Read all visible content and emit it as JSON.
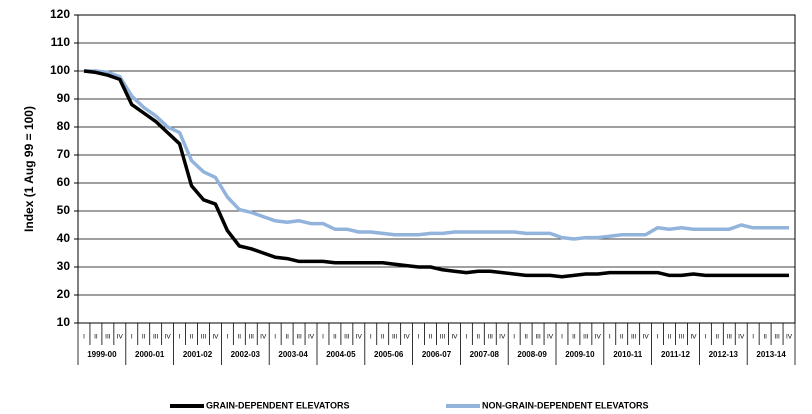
{
  "chart_data": {
    "type": "line",
    "y_label": "Index (1 Aug 99 = 100)",
    "categories": [
      "I",
      "II",
      "III",
      "IV",
      "I",
      "II",
      "III",
      "IV",
      "I",
      "II",
      "III",
      "IV",
      "I",
      "II",
      "III",
      "IV",
      "I",
      "II",
      "III",
      "IV",
      "I",
      "II",
      "III",
      "IV",
      "I",
      "II",
      "III",
      "IV",
      "I",
      "II",
      "III",
      "IV",
      "I",
      "II",
      "III",
      "IV",
      "I",
      "II",
      "III",
      "IV",
      "I",
      "II",
      "III",
      "IV",
      "I",
      "II",
      "III",
      "IV",
      "I",
      "II",
      "III",
      "IV",
      "I",
      "II",
      "III",
      "IV",
      "I",
      "II",
      "III",
      "IV"
    ],
    "groups": [
      "1999-00",
      "2000-01",
      "2001-02",
      "2002-03",
      "2003-04",
      "2004-05",
      "2005-06",
      "2006-07",
      "2007-08",
      "2008-09",
      "2009-10",
      "2010-11",
      "2011-12",
      "2012-13",
      "2013-14"
    ],
    "series": [
      {
        "name": "GRAIN-DEPENDENT ELEVATORS",
        "color": "#000000",
        "values": [
          100,
          99.5,
          98.5,
          97,
          88,
          85,
          82,
          78,
          74,
          59,
          54,
          52.5,
          43,
          37.5,
          36.5,
          35,
          33.5,
          33,
          32,
          32,
          32,
          31.5,
          31.5,
          31.5,
          31.5,
          31.5,
          31,
          30.5,
          30,
          30,
          29,
          28.5,
          28,
          28.5,
          28.5,
          28,
          27.5,
          27,
          27,
          27,
          26.5,
          27,
          27.5,
          27.5,
          28,
          28,
          28,
          28,
          28,
          27,
          27,
          27.5,
          27,
          27,
          27,
          27,
          27,
          27,
          27,
          27
        ]
      },
      {
        "name": "NON-GRAIN-DEPENDENT ELEVATORS",
        "color": "#92b4dc",
        "values": [
          100,
          100,
          99.5,
          98,
          91,
          87,
          84,
          80,
          78,
          68,
          64,
          62,
          55,
          50.5,
          49.5,
          48,
          46.5,
          46,
          46.5,
          45.5,
          45.5,
          43.5,
          43.5,
          42.5,
          42.5,
          42,
          41.5,
          41.5,
          41.5,
          42,
          42,
          42.5,
          42.5,
          42.5,
          42.5,
          42.5,
          42.5,
          42,
          42,
          42,
          40.5,
          40,
          40.5,
          40.5,
          41,
          41.5,
          41.5,
          41.5,
          44,
          43.5,
          44,
          43.5,
          43.5,
          43.5,
          43.5,
          45,
          44,
          44,
          44,
          44
        ]
      }
    ],
    "ylim": [
      10,
      120
    ],
    "yticks": [
      10,
      20,
      30,
      40,
      50,
      60,
      70,
      80,
      90,
      100,
      110,
      120
    ],
    "grid": true
  }
}
